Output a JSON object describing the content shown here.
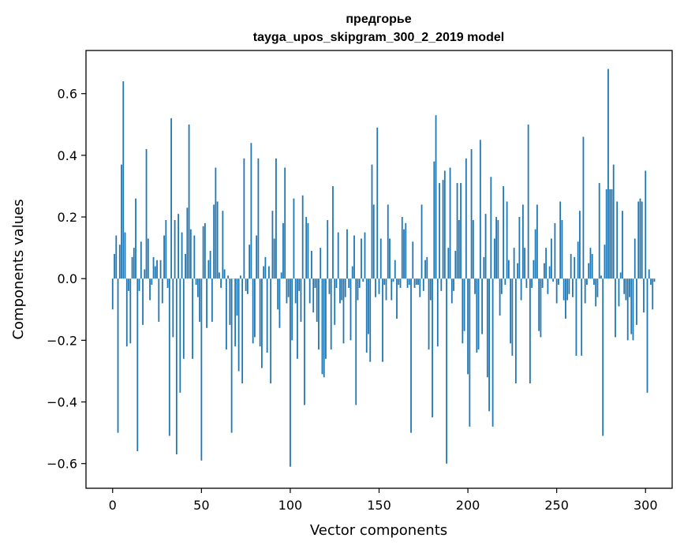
{
  "chart_data": {
    "type": "bar",
    "title_line1": "предгорье",
    "title_line2": "tayga_upos_skipgram_300_2_2019 model",
    "xlabel": "Vector components",
    "ylabel": "Components values",
    "xlim": [
      -15,
      315
    ],
    "ylim": [
      -0.68,
      0.74
    ],
    "x_ticks": [
      0,
      50,
      100,
      150,
      200,
      250,
      300
    ],
    "x_tick_labels": [
      "0",
      "50",
      "100",
      "150",
      "200",
      "250",
      "300"
    ],
    "y_ticks": [
      -0.6,
      -0.4,
      -0.2,
      0.0,
      0.2,
      0.4,
      0.6
    ],
    "y_tick_labels": [
      "−0.6",
      "−0.4",
      "−0.2",
      "0.0",
      "0.2",
      "0.4",
      "0.6"
    ],
    "bar_color": "#1f77b4",
    "values": [
      -0.1,
      0.08,
      0.14,
      -0.5,
      0.11,
      0.37,
      0.64,
      0.15,
      -0.22,
      -0.04,
      -0.21,
      0.07,
      0.1,
      0.26,
      -0.56,
      -0.04,
      0.12,
      -0.15,
      0.03,
      0.42,
      0.13,
      -0.07,
      -0.02,
      0.07,
      0.04,
      0.06,
      -0.14,
      0.06,
      -0.08,
      0.14,
      0.19,
      -0.03,
      -0.51,
      0.52,
      -0.19,
      0.19,
      -0.57,
      0.21,
      -0.37,
      0.15,
      -0.26,
      0.08,
      0.23,
      0.5,
      0.16,
      -0.26,
      0.14,
      -0.02,
      -0.06,
      -0.14,
      -0.59,
      0.17,
      0.18,
      -0.16,
      0.06,
      0.09,
      -0.14,
      0.24,
      0.36,
      0.25,
      0.02,
      -0.03,
      0.22,
      0.03,
      -0.23,
      0.01,
      -0.15,
      -0.5,
      0.0,
      -0.22,
      -0.12,
      -0.3,
      0.01,
      -0.34,
      0.39,
      -0.04,
      -0.05,
      0.11,
      0.44,
      -0.21,
      -0.19,
      0.14,
      0.39,
      -0.22,
      -0.29,
      0.04,
      0.07,
      -0.24,
      0.04,
      -0.34,
      0.22,
      0.13,
      0.39,
      -0.1,
      -0.16,
      0.02,
      0.18,
      0.36,
      -0.08,
      -0.06,
      -0.61,
      -0.2,
      0.26,
      -0.08,
      -0.26,
      -0.04,
      -0.14,
      0.27,
      -0.41,
      0.2,
      0.18,
      -0.08,
      0.09,
      -0.11,
      -0.03,
      -0.14,
      -0.23,
      0.1,
      -0.31,
      -0.32,
      -0.26,
      0.19,
      -0.05,
      -0.23,
      0.3,
      -0.15,
      -0.03,
      0.15,
      -0.08,
      -0.07,
      -0.21,
      -0.06,
      0.16,
      -0.03,
      -0.2,
      0.04,
      0.14,
      -0.41,
      -0.07,
      -0.03,
      0.13,
      -0.01,
      0.15,
      -0.24,
      -0.18,
      -0.27,
      0.37,
      0.24,
      -0.06,
      0.49,
      -0.05,
      0.13,
      -0.27,
      -0.02,
      -0.07,
      0.24,
      0.13,
      -0.07,
      -0.01,
      0.06,
      -0.13,
      -0.02,
      -0.03,
      0.2,
      0.16,
      0.18,
      -0.03,
      -0.02,
      -0.5,
      0.12,
      -0.03,
      -0.02,
      -0.02,
      -0.06,
      0.24,
      -0.04,
      0.06,
      0.07,
      -0.23,
      -0.07,
      -0.45,
      0.38,
      0.53,
      -0.22,
      0.31,
      -0.04,
      0.32,
      0.35,
      -0.6,
      0.1,
      0.36,
      -0.08,
      -0.04,
      0.09,
      0.31,
      0.19,
      0.31,
      -0.21,
      -0.17,
      0.39,
      -0.31,
      -0.48,
      0.42,
      0.19,
      -0.05,
      -0.24,
      -0.23,
      0.45,
      -0.18,
      0.07,
      0.21,
      -0.32,
      -0.43,
      0.33,
      -0.48,
      0.13,
      0.2,
      0.19,
      -0.12,
      -0.05,
      0.3,
      -0.02,
      0.25,
      0.06,
      -0.21,
      -0.25,
      0.1,
      -0.34,
      0.05,
      0.2,
      -0.07,
      0.24,
      0.1,
      -0.03,
      0.5,
      -0.34,
      -0.03,
      0.06,
      0.16,
      0.24,
      -0.17,
      -0.19,
      -0.03,
      0.05,
      0.1,
      -0.05,
      0.04,
      0.13,
      -0.01,
      0.18,
      -0.08,
      -0.02,
      0.25,
      0.19,
      -0.07,
      -0.13,
      -0.07,
      -0.05,
      0.08,
      -0.06,
      0.07,
      -0.25,
      0.12,
      0.22,
      -0.25,
      0.46,
      -0.08,
      -0.02,
      0.05,
      0.1,
      0.08,
      -0.02,
      -0.09,
      -0.06,
      0.31,
      0.01,
      -0.51,
      0.11,
      0.29,
      0.68,
      0.29,
      0.29,
      0.37,
      -0.19,
      0.25,
      -0.09,
      0.02,
      0.22,
      -0.05,
      -0.07,
      -0.2,
      -0.06,
      -0.18,
      -0.2,
      0.13,
      -0.15,
      0.25,
      0.26,
      0.25,
      -0.11,
      0.35,
      -0.37,
      0.03,
      -0.02,
      -0.1,
      -0.01
    ]
  }
}
